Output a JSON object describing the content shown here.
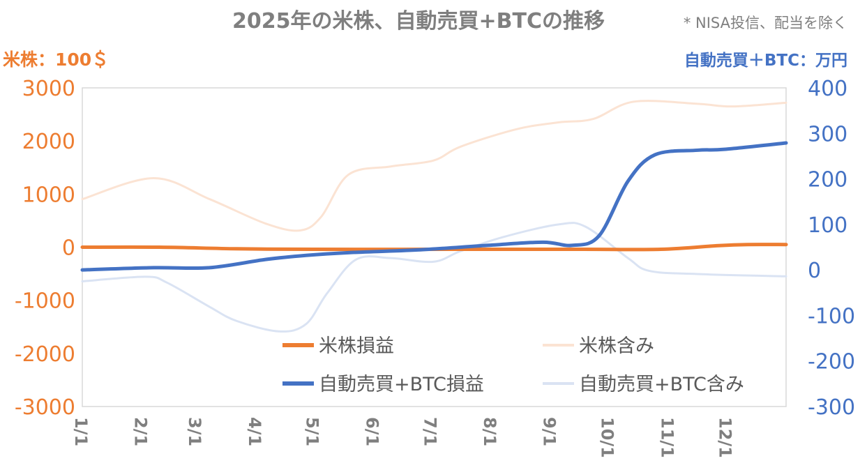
{
  "chart_data": {
    "type": "line",
    "title": "2025年の米株、自動売買+BTCの推移",
    "subtitle": "* NISA投信、配当を除く",
    "left_axis": {
      "label": "米株：100＄",
      "ylim": [
        -3000,
        3000
      ],
      "ticks": [
        3000,
        2000,
        1000,
        0,
        -1000,
        -2000,
        -3000
      ],
      "color": "#ED7D31"
    },
    "right_axis": {
      "label": "自動売買＋BTC：万円",
      "ylim": [
        -300,
        400
      ],
      "ticks": [
        400,
        300,
        200,
        100,
        0,
        -100,
        -200,
        -300
      ],
      "color": "#4472C4"
    },
    "x_unit": "day of year 2025",
    "x_ticks": [
      {
        "label": "1/1",
        "day": 0
      },
      {
        "label": "2/1",
        "day": 31
      },
      {
        "label": "3/1",
        "day": 59
      },
      {
        "label": "4/1",
        "day": 90
      },
      {
        "label": "5/1",
        "day": 120
      },
      {
        "label": "6/1",
        "day": 151
      },
      {
        "label": "7/1",
        "day": 181
      },
      {
        "label": "8/1",
        "day": 212
      },
      {
        "label": "9/1",
        "day": 243
      },
      {
        "label": "10/1",
        "day": 273
      },
      {
        "label": "11/1",
        "day": 304
      },
      {
        "label": "12/1",
        "day": 334
      }
    ],
    "legend_position": "inside-bottom",
    "series": [
      {
        "name": "米株損益",
        "axis": "left",
        "color": "#ED7D31",
        "width": 5,
        "points": [
          [
            0,
            0
          ],
          [
            40,
            0
          ],
          [
            80,
            -30
          ],
          [
            120,
            -40
          ],
          [
            200,
            -40
          ],
          [
            260,
            -40
          ],
          [
            300,
            -40
          ],
          [
            330,
            30
          ],
          [
            345,
            50
          ],
          [
            365,
            50
          ]
        ]
      },
      {
        "name": "米株含み",
        "axis": "left",
        "color": "#FBE3D3",
        "width": 3,
        "points": [
          [
            0,
            905
          ],
          [
            37,
            1300
          ],
          [
            66,
            905
          ],
          [
            95,
            446
          ],
          [
            113,
            315
          ],
          [
            124,
            577
          ],
          [
            138,
            1365
          ],
          [
            160,
            1520
          ],
          [
            182,
            1630
          ],
          [
            196,
            1890
          ],
          [
            225,
            2220
          ],
          [
            247,
            2350
          ],
          [
            265,
            2415
          ],
          [
            286,
            2740
          ],
          [
            319,
            2700
          ],
          [
            337,
            2650
          ],
          [
            365,
            2720
          ]
        ]
      },
      {
        "name": "自動売買+BTC損益",
        "axis": "right",
        "color": "#4472C4",
        "width": 5,
        "points": [
          [
            0,
            0
          ],
          [
            37,
            5
          ],
          [
            66,
            5
          ],
          [
            95,
            23
          ],
          [
            116,
            32
          ],
          [
            138,
            38
          ],
          [
            174,
            44
          ],
          [
            210,
            54
          ],
          [
            239,
            61
          ],
          [
            254,
            54
          ],
          [
            268,
            75
          ],
          [
            283,
            195
          ],
          [
            297,
            253
          ],
          [
            319,
            263
          ],
          [
            333,
            265
          ],
          [
            365,
            279
          ]
        ]
      },
      {
        "name": "自動売買+BTC含み",
        "axis": "right",
        "color": "#DAE3F3",
        "width": 3,
        "points": [
          [
            0,
            -25
          ],
          [
            33,
            -15
          ],
          [
            44,
            -28
          ],
          [
            66,
            -81
          ],
          [
            80,
            -112
          ],
          [
            102,
            -135
          ],
          [
            116,
            -119
          ],
          [
            127,
            -51
          ],
          [
            142,
            23
          ],
          [
            160,
            26
          ],
          [
            182,
            18
          ],
          [
            196,
            41
          ],
          [
            218,
            72
          ],
          [
            247,
            100
          ],
          [
            261,
            95
          ],
          [
            283,
            26
          ],
          [
            294,
            -2
          ],
          [
            319,
            -9
          ],
          [
            365,
            -14
          ]
        ]
      }
    ]
  }
}
